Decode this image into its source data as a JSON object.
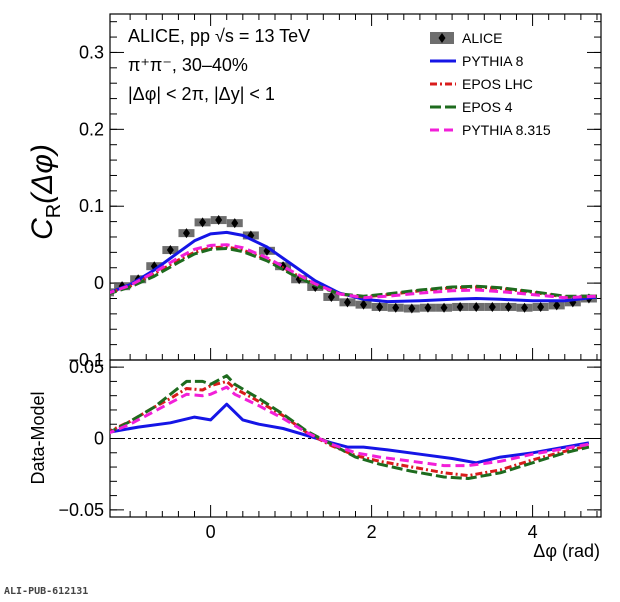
{
  "chart_data": [
    {
      "type": "line",
      "panel": "top",
      "ylabel_main": "C",
      "ylabel_sub": "R",
      "ylabel_tail": "(Δφ)",
      "xlim": [
        -1.25,
        4.85
      ],
      "ylim": [
        -0.1,
        0.35
      ],
      "y_ticks": [
        -0.1,
        0,
        0.1,
        0.2,
        0.3
      ],
      "y_tick_labels": [
        "−0.1",
        "0",
        "0.1",
        "0.2",
        "0.3"
      ],
      "annotations": [
        "ALICE, pp √s = 13 TeV",
        "π⁺π⁻, 30–40%",
        "|Δφ| < 2π, |Δy| < 1"
      ],
      "legend_position": "top-right",
      "data_series": {
        "name": "ALICE",
        "color": "#000000",
        "x": [
          -1.3,
          -1.1,
          -0.9,
          -0.7,
          -0.5,
          -0.3,
          -0.1,
          0.1,
          0.3,
          0.5,
          0.7,
          0.9,
          1.1,
          1.3,
          1.5,
          1.7,
          1.9,
          2.1,
          2.3,
          2.5,
          2.7,
          2.9,
          3.1,
          3.3,
          3.5,
          3.7,
          3.9,
          4.1,
          4.3,
          4.5,
          4.7
        ],
        "y": [
          -0.012,
          -0.004,
          0.005,
          0.022,
          0.043,
          0.065,
          0.079,
          0.082,
          0.078,
          0.062,
          0.042,
          0.022,
          0.005,
          -0.005,
          -0.018,
          -0.025,
          -0.028,
          -0.031,
          -0.032,
          -0.033,
          -0.032,
          -0.032,
          -0.031,
          -0.031,
          -0.031,
          -0.031,
          -0.032,
          -0.031,
          -0.029,
          -0.025,
          -0.02
        ]
      },
      "series": [
        {
          "name": "PYTHIA 8",
          "color": "#1515e6",
          "dash": "solid",
          "x": [
            -1.3,
            -1.0,
            -0.7,
            -0.4,
            -0.2,
            0.0,
            0.2,
            0.4,
            0.7,
            1.0,
            1.3,
            1.6,
            1.9,
            2.2,
            2.6,
            3.0,
            3.3,
            3.6,
            4.0,
            4.4,
            4.8
          ],
          "y": [
            -0.014,
            -0.002,
            0.017,
            0.04,
            0.055,
            0.064,
            0.066,
            0.062,
            0.047,
            0.025,
            0.003,
            -0.013,
            -0.021,
            -0.024,
            -0.023,
            -0.021,
            -0.02,
            -0.021,
            -0.023,
            -0.023,
            -0.018
          ]
        },
        {
          "name": "EPOS LHC",
          "color": "#d91c1c",
          "dash": "dashdot",
          "x": [
            -1.3,
            -1.0,
            -0.7,
            -0.4,
            -0.2,
            0.0,
            0.2,
            0.4,
            0.7,
            1.0,
            1.3,
            1.6,
            1.9,
            2.2,
            2.6,
            3.0,
            3.3,
            3.6,
            4.0,
            4.4,
            4.8
          ],
          "y": [
            -0.014,
            -0.004,
            0.012,
            0.03,
            0.04,
            0.046,
            0.047,
            0.043,
            0.031,
            0.014,
            -0.002,
            -0.014,
            -0.018,
            -0.015,
            -0.01,
            -0.006,
            -0.005,
            -0.007,
            -0.012,
            -0.018,
            -0.017
          ]
        },
        {
          "name": "EPOS 4",
          "color": "#1e6b1e",
          "dash": "longdash",
          "x": [
            -1.3,
            -1.0,
            -0.7,
            -0.4,
            -0.2,
            0.0,
            0.2,
            0.4,
            0.7,
            1.0,
            1.3,
            1.6,
            1.9,
            2.2,
            2.6,
            3.0,
            3.3,
            3.6,
            4.0,
            4.4,
            4.8
          ],
          "y": [
            -0.015,
            -0.005,
            0.009,
            0.027,
            0.038,
            0.044,
            0.045,
            0.041,
            0.029,
            0.012,
            -0.003,
            -0.014,
            -0.017,
            -0.014,
            -0.009,
            -0.005,
            -0.004,
            -0.006,
            -0.011,
            -0.017,
            -0.017
          ]
        },
        {
          "name": "PYTHIA 8.315",
          "color": "#f21fd8",
          "dash": "dash",
          "x": [
            -1.3,
            -1.0,
            -0.7,
            -0.4,
            -0.2,
            0.0,
            0.2,
            0.4,
            0.7,
            1.0,
            1.3,
            1.6,
            1.9,
            2.2,
            2.6,
            3.0,
            3.3,
            3.6,
            4.0,
            4.4,
            4.8
          ],
          "y": [
            -0.014,
            -0.003,
            0.014,
            0.033,
            0.044,
            0.049,
            0.05,
            0.046,
            0.033,
            0.016,
            -0.001,
            -0.014,
            -0.019,
            -0.017,
            -0.013,
            -0.01,
            -0.009,
            -0.011,
            -0.015,
            -0.019,
            -0.017
          ]
        }
      ]
    },
    {
      "type": "line",
      "panel": "bottom",
      "ylabel": "Data-Model",
      "xlabel": "Δφ (rad)",
      "xlim": [
        -1.25,
        4.85
      ],
      "ylim": [
        -0.055,
        0.055
      ],
      "y_ticks": [
        -0.05,
        0,
        0.05
      ],
      "y_tick_labels": [
        "−0.05",
        "0",
        "0.05"
      ],
      "x_ticks": [
        0,
        2,
        4
      ],
      "x_tick_labels": [
        "0",
        "2",
        "4"
      ],
      "series": [
        {
          "name": "PYTHIA 8",
          "color": "#1515e6",
          "dash": "solid",
          "x": [
            -1.3,
            -0.9,
            -0.5,
            -0.2,
            0.0,
            0.2,
            0.4,
            0.6,
            0.9,
            1.2,
            1.5,
            1.7,
            1.9,
            2.2,
            2.6,
            3.0,
            3.3,
            3.6,
            4.0,
            4.4,
            4.7
          ],
          "y": [
            0.004,
            0.008,
            0.011,
            0.015,
            0.013,
            0.024,
            0.013,
            0.01,
            0.007,
            0.002,
            -0.003,
            -0.006,
            -0.006,
            -0.008,
            -0.011,
            -0.014,
            -0.017,
            -0.013,
            -0.01,
            -0.006,
            -0.003
          ]
        },
        {
          "name": "EPOS LHC",
          "color": "#d91c1c",
          "dash": "dashdot",
          "x": [
            -1.3,
            -1.0,
            -0.7,
            -0.5,
            -0.3,
            -0.1,
            0.0,
            0.2,
            0.3,
            0.6,
            0.9,
            1.2,
            1.5,
            1.8,
            2.1,
            2.5,
            2.9,
            3.2,
            3.6,
            4.0,
            4.4,
            4.7
          ],
          "y": [
            0.004,
            0.012,
            0.022,
            0.028,
            0.035,
            0.034,
            0.037,
            0.04,
            0.035,
            0.026,
            0.016,
            0.004,
            -0.005,
            -0.012,
            -0.016,
            -0.02,
            -0.024,
            -0.026,
            -0.022,
            -0.015,
            -0.009,
            -0.005
          ]
        },
        {
          "name": "EPOS 4",
          "color": "#1e6b1e",
          "dash": "longdash",
          "x": [
            -1.3,
            -1.0,
            -0.7,
            -0.5,
            -0.3,
            -0.1,
            0.0,
            0.2,
            0.3,
            0.6,
            0.9,
            1.2,
            1.5,
            1.8,
            2.1,
            2.5,
            2.9,
            3.2,
            3.6,
            4.0,
            4.4,
            4.7
          ],
          "y": [
            0.003,
            0.012,
            0.022,
            0.031,
            0.04,
            0.04,
            0.038,
            0.044,
            0.038,
            0.028,
            0.017,
            0.005,
            -0.004,
            -0.013,
            -0.018,
            -0.023,
            -0.027,
            -0.028,
            -0.024,
            -0.017,
            -0.01,
            -0.006
          ]
        },
        {
          "name": "PYTHIA 8.315",
          "color": "#f21fd8",
          "dash": "dash",
          "x": [
            -1.3,
            -1.0,
            -0.7,
            -0.5,
            -0.3,
            -0.1,
            0.0,
            0.2,
            0.3,
            0.6,
            0.9,
            1.2,
            1.5,
            1.8,
            2.1,
            2.5,
            2.9,
            3.2,
            3.6,
            4.0,
            4.4,
            4.7
          ],
          "y": [
            0.003,
            0.01,
            0.019,
            0.025,
            0.031,
            0.03,
            0.031,
            0.036,
            0.031,
            0.023,
            0.014,
            0.004,
            -0.004,
            -0.01,
            -0.013,
            -0.016,
            -0.019,
            -0.019,
            -0.016,
            -0.011,
            -0.007,
            -0.004
          ]
        }
      ]
    }
  ],
  "footer": "ALI-PUB-612131"
}
